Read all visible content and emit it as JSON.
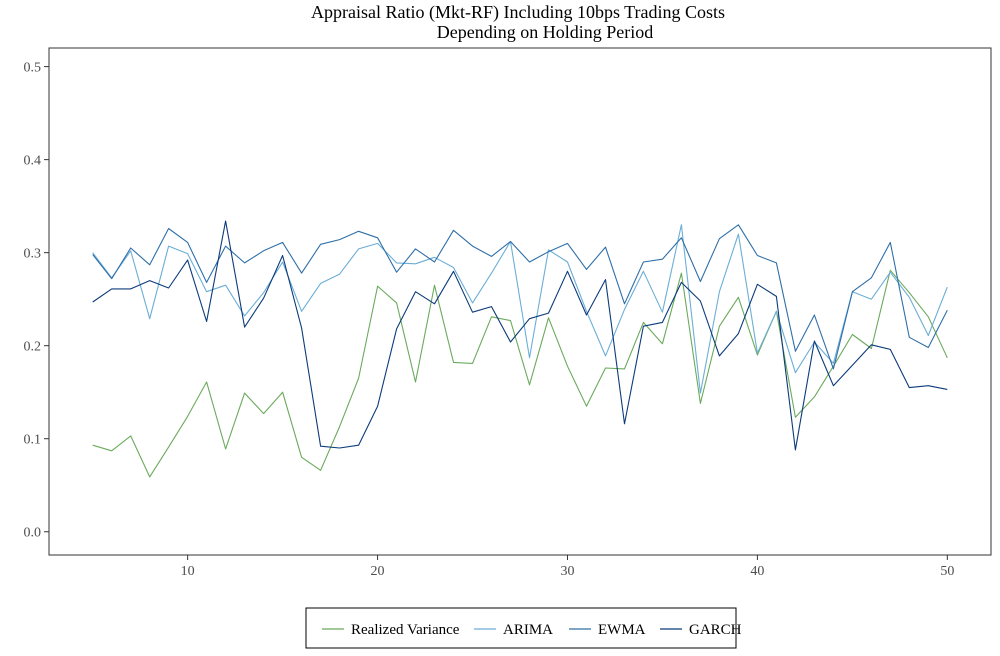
{
  "chart_data": {
    "type": "line",
    "title": [
      "Appraisal Ratio (Mkt-RF) Including 10bps Trading Costs",
      "Depending on Holding Period"
    ],
    "xlabel": "",
    "ylabel": "",
    "xlim": [
      2.7,
      52.3
    ],
    "ylim": [
      -0.025,
      0.52
    ],
    "x_ticks": [
      10,
      20,
      30,
      40,
      50
    ],
    "y_ticks": [
      0.0,
      0.1,
      0.2,
      0.3,
      0.4,
      0.5
    ],
    "x_tick_labels": [
      "10",
      "20",
      "30",
      "40",
      "50"
    ],
    "y_tick_labels": [
      "0.0",
      "0.1",
      "0.2",
      "0.3",
      "0.4",
      "0.5"
    ],
    "grid": false,
    "legend": "bottom",
    "x": [
      5,
      6,
      7,
      8,
      9,
      10,
      11,
      12,
      13,
      14,
      15,
      16,
      17,
      18,
      19,
      20,
      21,
      22,
      23,
      24,
      25,
      26,
      27,
      28,
      29,
      30,
      31,
      32,
      33,
      34,
      35,
      36,
      37,
      38,
      39,
      40,
      41,
      42,
      43,
      44,
      45,
      46,
      47,
      48,
      49,
      50
    ],
    "series": [
      {
        "name": "Realized Variance",
        "color": "#6aaa5c",
        "values": [
          0.093,
          0.087,
          0.103,
          0.059,
          0.091,
          0.124,
          0.161,
          0.089,
          0.149,
          0.127,
          0.15,
          0.08,
          0.066,
          0.113,
          0.165,
          0.264,
          0.246,
          0.161,
          0.265,
          0.182,
          0.181,
          0.231,
          0.227,
          0.158,
          0.23,
          0.178,
          0.135,
          0.176,
          0.175,
          0.225,
          0.202,
          0.278,
          0.138,
          0.221,
          0.252,
          0.19,
          0.237,
          0.123,
          0.145,
          0.178,
          0.212,
          0.197,
          0.281,
          0.257,
          0.231,
          0.187
        ]
      },
      {
        "name": "ARIMA",
        "color": "#6baed6",
        "values": [
          0.3,
          0.273,
          0.302,
          0.229,
          0.307,
          0.299,
          0.258,
          0.265,
          0.232,
          0.257,
          0.29,
          0.237,
          0.267,
          0.277,
          0.304,
          0.31,
          0.289,
          0.288,
          0.295,
          0.284,
          0.246,
          0.278,
          0.312,
          0.187,
          0.303,
          0.29,
          0.237,
          0.189,
          0.239,
          0.28,
          0.236,
          0.33,
          0.149,
          0.258,
          0.32,
          0.192,
          0.237,
          0.171,
          0.204,
          0.181,
          0.258,
          0.25,
          0.279,
          0.252,
          0.211,
          0.263
        ]
      },
      {
        "name": "EWMA",
        "color": "#2f6fa8",
        "values": [
          0.298,
          0.272,
          0.305,
          0.287,
          0.326,
          0.311,
          0.268,
          0.307,
          0.289,
          0.302,
          0.311,
          0.278,
          0.309,
          0.314,
          0.323,
          0.316,
          0.279,
          0.304,
          0.29,
          0.324,
          0.307,
          0.296,
          0.312,
          0.29,
          0.301,
          0.31,
          0.282,
          0.306,
          0.245,
          0.29,
          0.293,
          0.316,
          0.269,
          0.315,
          0.33,
          0.297,
          0.289,
          0.194,
          0.233,
          0.175,
          0.258,
          0.273,
          0.311,
          0.209,
          0.198,
          0.238
        ]
      },
      {
        "name": "GARCH",
        "color": "#0c3b7a",
        "values": [
          0.247,
          0.261,
          0.261,
          0.27,
          0.262,
          0.292,
          0.226,
          0.334,
          0.22,
          0.251,
          0.297,
          0.219,
          0.092,
          0.09,
          0.093,
          0.135,
          0.218,
          0.258,
          0.245,
          0.28,
          0.236,
          0.242,
          0.204,
          0.229,
          0.235,
          0.28,
          0.233,
          0.271,
          0.116,
          0.221,
          0.225,
          0.268,
          0.248,
          0.189,
          0.213,
          0.266,
          0.253,
          0.088,
          0.205,
          0.157,
          0.179,
          0.201,
          0.196,
          0.155,
          0.157,
          0.153
        ]
      }
    ]
  }
}
